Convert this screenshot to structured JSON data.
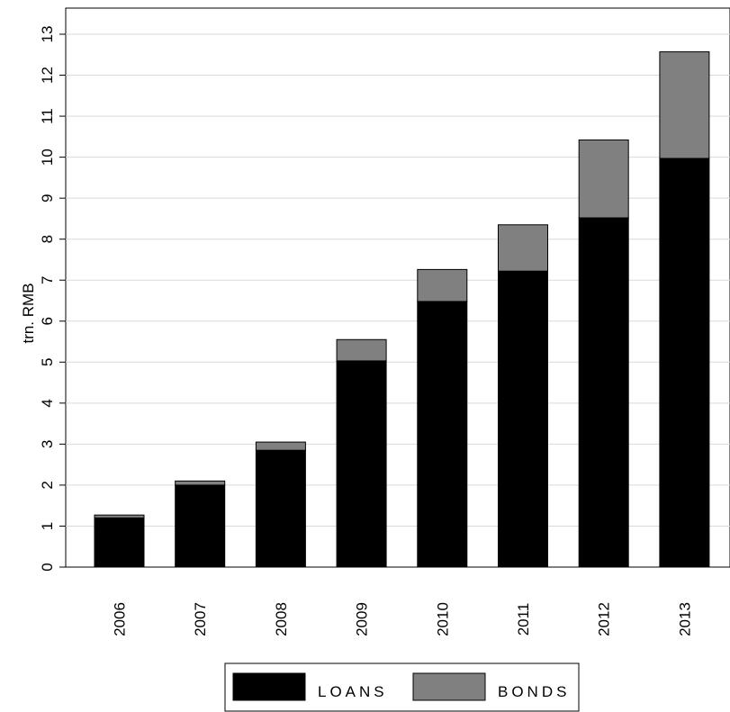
{
  "chart_data": {
    "type": "bar",
    "stacked": true,
    "categories": [
      "2006",
      "2007",
      "2008",
      "2009",
      "2010",
      "2011",
      "2012",
      "2013"
    ],
    "series": [
      {
        "name": "LOANS",
        "color": "#000000",
        "values": [
          1.2,
          2.0,
          2.85,
          5.03,
          6.48,
          7.22,
          8.52,
          9.97
        ]
      },
      {
        "name": "BONDS",
        "color": "#808080",
        "values": [
          0.07,
          0.1,
          0.2,
          0.52,
          0.78,
          1.13,
          1.9,
          2.6
        ]
      }
    ],
    "ylabel": "trn. RMB",
    "ylim": [
      0,
      13
    ],
    "yticks": [
      0,
      1,
      2,
      3,
      4,
      5,
      6,
      7,
      8,
      9,
      10,
      11,
      12,
      13
    ],
    "grid": true,
    "legend": "bottom"
  }
}
